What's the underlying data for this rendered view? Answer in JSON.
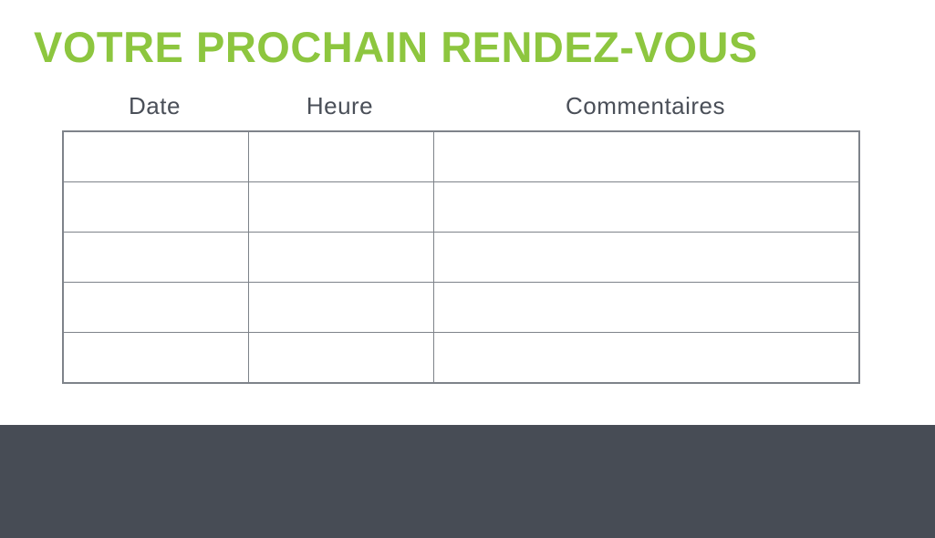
{
  "page": {
    "title": "VOTRE PROCHAIN RENDEZ-VOUS"
  },
  "appointments_table": {
    "columns": [
      {
        "label": "Date"
      },
      {
        "label": "Heure"
      },
      {
        "label": "Commentaires"
      }
    ],
    "rows": [
      [
        "",
        "",
        ""
      ],
      [
        "",
        "",
        ""
      ],
      [
        "",
        "",
        ""
      ],
      [
        "",
        "",
        ""
      ],
      [
        "",
        "",
        ""
      ]
    ]
  },
  "colors": {
    "title_green": "#8DC63F",
    "header_text": "#4A4F58",
    "table_border": "#7E838A",
    "footer_background": "#474C55",
    "page_background": "#FFFFFF"
  }
}
